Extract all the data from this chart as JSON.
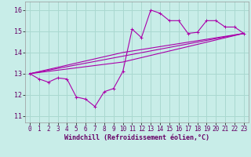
{
  "xlabel": "Windchill (Refroidissement éolien,°C)",
  "background_color": "#c8ede8",
  "grid_color": "#aad8d0",
  "line_color": "#aa00aa",
  "xlim": [
    -0.5,
    23.5
  ],
  "ylim": [
    10.7,
    16.4
  ],
  "yticks": [
    11,
    12,
    13,
    14,
    15,
    16
  ],
  "xticks": [
    0,
    1,
    2,
    3,
    4,
    5,
    6,
    7,
    8,
    9,
    10,
    11,
    12,
    13,
    14,
    15,
    16,
    17,
    18,
    19,
    20,
    21,
    22,
    23
  ],
  "hours": [
    0,
    1,
    2,
    3,
    4,
    5,
    6,
    7,
    8,
    9,
    10,
    11,
    12,
    13,
    14,
    15,
    16,
    17,
    18,
    19,
    20,
    21,
    22,
    23
  ],
  "windchill": [
    13.0,
    12.75,
    12.6,
    12.8,
    12.75,
    11.9,
    11.8,
    11.45,
    12.15,
    12.3,
    13.1,
    15.1,
    14.7,
    16.0,
    15.85,
    15.5,
    15.5,
    14.9,
    14.95,
    15.5,
    15.5,
    15.2,
    15.2,
    14.9
  ],
  "line1_x": [
    0,
    23
  ],
  "line1_y": [
    13.0,
    14.9
  ],
  "line2_x": [
    0,
    10,
    23
  ],
  "line2_y": [
    13.0,
    13.55,
    14.9
  ],
  "line3_x": [
    0,
    10,
    23
  ],
  "line3_y": [
    13.0,
    14.0,
    14.9
  ],
  "tick_fontsize": 5.5,
  "xlabel_fontsize": 6.0
}
